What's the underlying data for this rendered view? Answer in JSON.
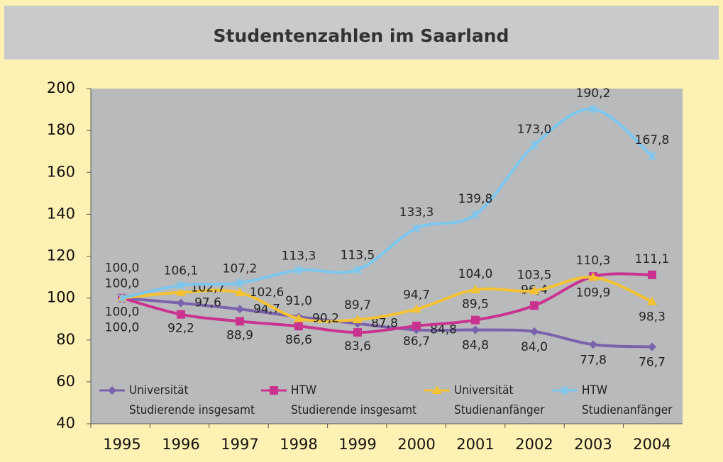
{
  "chart_data": {
    "type": "line",
    "title": "Studentenzahlen im Saarland",
    "categories": [
      "1995",
      "1996",
      "1997",
      "1998",
      "1999",
      "2000",
      "2001",
      "2002",
      "2003",
      "2004"
    ],
    "ylim": [
      40,
      200
    ],
    "yticks": [
      40,
      60,
      80,
      100,
      120,
      140,
      160,
      180,
      200
    ],
    "series": [
      {
        "name": "Universität\nStudierende insgesamt",
        "color": "#7b62ad",
        "marker": "diamond",
        "values": [
          100.0,
          97.6,
          94.7,
          91.0,
          87.8,
          84.8,
          84.8,
          84.0,
          77.8,
          76.7
        ],
        "value_labels": [
          "100,0",
          "97,6",
          "94,7",
          "91,0",
          "87,8",
          "84,8",
          "84,8",
          "84,0",
          "77,8",
          "76,7"
        ]
      },
      {
        "name": "HTW\nStudierende insgesamt",
        "color": "#c9338f",
        "marker": "square",
        "values": [
          100.0,
          92.2,
          88.9,
          86.6,
          83.6,
          86.7,
          89.5,
          96.4,
          110.3,
          111.1
        ],
        "value_labels": [
          "100,0",
          "92,2",
          "88,9",
          "86,6",
          "83,6",
          "86,7",
          "89,5",
          "96,4",
          "110,3",
          "111,1"
        ]
      },
      {
        "name": "Universität\nStudienanfänger",
        "color": "#f4c233",
        "marker": "triangle",
        "values": [
          100.0,
          102.7,
          102.6,
          90.2,
          89.7,
          94.7,
          104.0,
          103.5,
          109.9,
          98.3
        ],
        "value_labels": [
          "100,0",
          "102,7",
          "102,6",
          "90,2",
          "89,7",
          "94,7",
          "104,0",
          "103,5",
          "109,9",
          "98,3"
        ]
      },
      {
        "name": "HTW\nStudienanfänger",
        "color": "#7cc7ef",
        "marker": "star",
        "values": [
          100.0,
          106.1,
          107.2,
          113.3,
          113.5,
          133.3,
          139.8,
          173.0,
          190.2,
          167.8
        ],
        "value_labels": [
          "100,0",
          "106,1",
          "107,2",
          "113,3",
          "113,5",
          "133,3",
          "139,8",
          "173,0",
          "190,2",
          "167,8"
        ]
      }
    ]
  }
}
